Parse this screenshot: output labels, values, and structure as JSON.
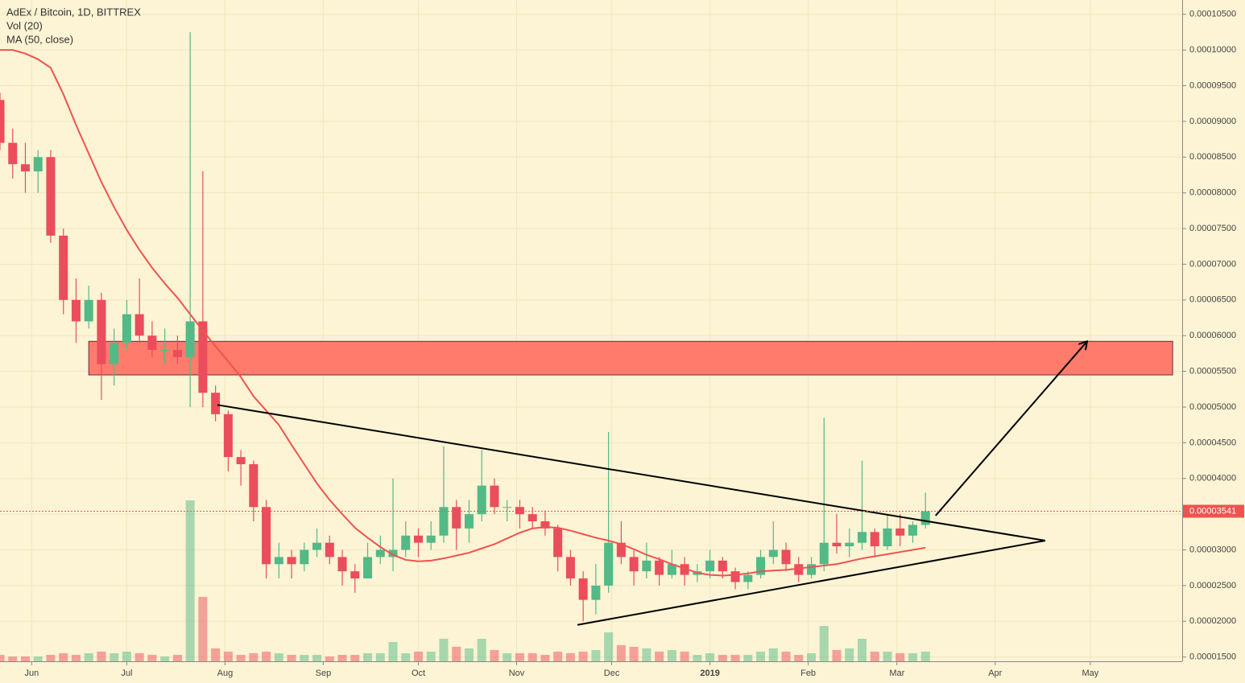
{
  "chart_data": {
    "type": "candlestick",
    "title": "AdEx / Bitcoin, 1D, BITTREX",
    "ylim": [
      1.44e-05,
      0.000107
    ],
    "yticks": [
      {
        "value": 1.5e-05,
        "label": "0.00001500"
      },
      {
        "value": 2e-05,
        "label": "0.00002000"
      },
      {
        "value": 2.5e-05,
        "label": "0.00002500"
      },
      {
        "value": 3e-05,
        "label": "0.00003000"
      },
      {
        "value": 3.5e-05,
        "label": "0.00003500"
      },
      {
        "value": 4e-05,
        "label": "0.00004000"
      },
      {
        "value": 4.5e-05,
        "label": "0.00004500"
      },
      {
        "value": 5e-05,
        "label": "0.00005000"
      },
      {
        "value": 5.5e-05,
        "label": "0.00005500"
      },
      {
        "value": 6e-05,
        "label": "0.00006000"
      },
      {
        "value": 6.5e-05,
        "label": "0.00006500"
      },
      {
        "value": 7e-05,
        "label": "0.00007000"
      },
      {
        "value": 7.5e-05,
        "label": "0.00007500"
      },
      {
        "value": 8e-05,
        "label": "0.00008000"
      },
      {
        "value": 8.5e-05,
        "label": "0.00008500"
      },
      {
        "value": 9e-05,
        "label": "0.00009000"
      },
      {
        "value": 9.5e-05,
        "label": "0.00009500"
      },
      {
        "value": 0.0001,
        "label": "0.00010000"
      },
      {
        "value": 0.000105,
        "label": "0.00010500"
      }
    ],
    "xlim": [
      0,
      373
    ],
    "xticks": [
      {
        "value": 10,
        "label": "Jun"
      },
      {
        "value": 40,
        "label": "Jul"
      },
      {
        "value": 71,
        "label": "Aug"
      },
      {
        "value": 102,
        "label": "Sep"
      },
      {
        "value": 132,
        "label": "Oct"
      },
      {
        "value": 163,
        "label": "Nov"
      },
      {
        "value": 193,
        "label": "Dec"
      },
      {
        "value": 224,
        "label": "2019"
      },
      {
        "value": 255,
        "label": "Feb"
      },
      {
        "value": 283,
        "label": "Mar"
      },
      {
        "value": 314,
        "label": "Apr"
      },
      {
        "value": 344,
        "label": "May"
      }
    ],
    "grid": true,
    "candles": {
      "up_color": "#53b987",
      "down_color": "#eb4d5c",
      "x": [
        0,
        4,
        8,
        12,
        16,
        20,
        24,
        28,
        32,
        36,
        40,
        44,
        48,
        52,
        56,
        60,
        64,
        68,
        72,
        76,
        80,
        84,
        88,
        92,
        96,
        100,
        104,
        108,
        112,
        116,
        120,
        124,
        128,
        132,
        136,
        140,
        144,
        148,
        152,
        156,
        160,
        164,
        168,
        172,
        176,
        180,
        184,
        188,
        192,
        196,
        200,
        204,
        208,
        212,
        216,
        220,
        224,
        228,
        232,
        236,
        240,
        244,
        248,
        252,
        256,
        260,
        264,
        268,
        272,
        276,
        280,
        284,
        288,
        292
      ],
      "open": [
        9.3e-05,
        8.7e-05,
        8.4e-05,
        8.3e-05,
        8.5e-05,
        7.4e-05,
        6.5e-05,
        6.2e-05,
        6.5e-05,
        5.6e-05,
        5.9e-05,
        6.3e-05,
        6e-05,
        5.8e-05,
        5.8e-05,
        5.7e-05,
        6.2e-05,
        5.2e-05,
        4.9e-05,
        4.3e-05,
        4.2e-05,
        3.6e-05,
        2.8e-05,
        2.9e-05,
        2.8e-05,
        3e-05,
        3.1e-05,
        2.9e-05,
        2.7e-05,
        2.6e-05,
        2.9e-05,
        2.9e-05,
        3e-05,
        3.2e-05,
        3.1e-05,
        3.2e-05,
        3.6e-05,
        3.3e-05,
        3.5e-05,
        3.9e-05,
        3.6e-05,
        3.6e-05,
        3.5e-05,
        3.4e-05,
        3.3e-05,
        2.9e-05,
        2.6e-05,
        2.3e-05,
        2.5e-05,
        3.1e-05,
        2.9e-05,
        2.7e-05,
        2.85e-05,
        2.65e-05,
        2.8e-05,
        2.65e-05,
        2.7e-05,
        2.85e-05,
        2.7e-05,
        2.55e-05,
        2.65e-05,
        2.9e-05,
        3e-05,
        2.8e-05,
        2.65e-05,
        2.8e-05,
        3.1e-05,
        3.05e-05,
        3.1e-05,
        3.25e-05,
        3.05e-05,
        3.3e-05,
        3.2e-05,
        3.35e-05
      ],
      "high": [
        9.4e-05,
        8.9e-05,
        8.7e-05,
        8.6e-05,
        8.6e-05,
        7.5e-05,
        6.8e-05,
        6.7e-05,
        6.6e-05,
        6.1e-05,
        6.5e-05,
        6.8e-05,
        6.2e-05,
        6.1e-05,
        6e-05,
        0.0001025,
        8.3e-05,
        5.3e-05,
        4.95e-05,
        4.4e-05,
        4.25e-05,
        3.7e-05,
        3.1e-05,
        3e-05,
        3.1e-05,
        3.3e-05,
        3.2e-05,
        3e-05,
        2.8e-05,
        3.1e-05,
        3.2e-05,
        4e-05,
        3.4e-05,
        3.3e-05,
        3.4e-05,
        4.45e-05,
        3.7e-05,
        3.7e-05,
        4.4e-05,
        4e-05,
        3.7e-05,
        3.7e-05,
        3.6e-05,
        3.55e-05,
        3.35e-05,
        3e-05,
        2.7e-05,
        2.8e-05,
        4.65e-05,
        3.4e-05,
        3e-05,
        3.1e-05,
        2.9e-05,
        3e-05,
        2.9e-05,
        2.8e-05,
        3e-05,
        2.9e-05,
        2.75e-05,
        2.7e-05,
        3e-05,
        3.4e-05,
        3.1e-05,
        2.9e-05,
        2.9e-05,
        4.85e-05,
        3.5e-05,
        3.3e-05,
        4.25e-05,
        3.3e-05,
        3.5e-05,
        3.5e-05,
        3.4e-05,
        3.8e-05
      ],
      "low": [
        8.6e-05,
        8.2e-05,
        8e-05,
        8e-05,
        7.3e-05,
        6.3e-05,
        5.9e-05,
        6.1e-05,
        5.1e-05,
        5.3e-05,
        5.8e-05,
        5.9e-05,
        5.7e-05,
        5.6e-05,
        5.6e-05,
        5e-05,
        5e-05,
        4.8e-05,
        4.1e-05,
        3.9e-05,
        3.4e-05,
        2.6e-05,
        2.6e-05,
        2.6e-05,
        2.7e-05,
        2.9e-05,
        2.8e-05,
        2.5e-05,
        2.4e-05,
        2.6e-05,
        2.8e-05,
        2.7e-05,
        2.9e-05,
        2.9e-05,
        3e-05,
        3.1e-05,
        3e-05,
        3.1e-05,
        3.4e-05,
        3.5e-05,
        3.4e-05,
        3.3e-05,
        3.3e-05,
        3.2e-05,
        2.7e-05,
        2.5e-05,
        2e-05,
        2.1e-05,
        2.4e-05,
        2.8e-05,
        2.5e-05,
        2.6e-05,
        2.5e-05,
        2.6e-05,
        2.5e-05,
        2.55e-05,
        2.6e-05,
        2.6e-05,
        2.45e-05,
        2.45e-05,
        2.6e-05,
        2.8e-05,
        2.7e-05,
        2.55e-05,
        2.6e-05,
        2.7e-05,
        2.95e-05,
        2.9e-05,
        3e-05,
        2.9e-05,
        3e-05,
        3.05e-05,
        3.1e-05,
        3.3e-05
      ],
      "close": [
        8.7e-05,
        8.4e-05,
        8.3e-05,
        8.5e-05,
        7.4e-05,
        6.5e-05,
        6.2e-05,
        6.5e-05,
        5.6e-05,
        5.9e-05,
        6.3e-05,
        6e-05,
        5.8e-05,
        5.8e-05,
        5.7e-05,
        6.2e-05,
        5.2e-05,
        4.9e-05,
        4.3e-05,
        4.2e-05,
        3.6e-05,
        2.8e-05,
        2.9e-05,
        2.8e-05,
        3e-05,
        3.1e-05,
        2.9e-05,
        2.7e-05,
        2.6e-05,
        2.9e-05,
        3e-05,
        3e-05,
        3.2e-05,
        3.1e-05,
        3.2e-05,
        3.6e-05,
        3.3e-05,
        3.5e-05,
        3.9e-05,
        3.6e-05,
        3.6e-05,
        3.5e-05,
        3.4e-05,
        3.3e-05,
        2.9e-05,
        2.6e-05,
        2.3e-05,
        2.5e-05,
        3.1e-05,
        2.9e-05,
        2.7e-05,
        2.85e-05,
        2.65e-05,
        2.8e-05,
        2.65e-05,
        2.7e-05,
        2.85e-05,
        2.7e-05,
        2.55e-05,
        2.65e-05,
        2.9e-05,
        3e-05,
        2.8e-05,
        2.65e-05,
        2.8e-05,
        3.1e-05,
        3.05e-05,
        3.1e-05,
        3.25e-05,
        3.05e-05,
        3.3e-05,
        3.2e-05,
        3.35e-05,
        3.541e-05
      ]
    },
    "volume": {
      "name": "Vol (20)",
      "values": [
        4,
        3,
        3,
        3,
        4,
        5,
        4,
        5,
        6,
        5,
        6,
        5,
        4,
        3,
        4,
        100,
        40,
        8,
        6,
        4,
        5,
        6,
        5,
        4,
        4,
        4,
        3,
        4,
        4,
        5,
        5,
        12,
        5,
        6,
        6,
        14,
        9,
        8,
        14,
        7,
        5,
        5,
        5,
        4,
        6,
        5,
        6,
        7,
        18,
        10,
        9,
        8,
        6,
        7,
        6,
        4,
        5,
        4,
        4,
        4,
        6,
        8,
        6,
        4,
        5,
        22,
        7,
        8,
        14,
        6,
        6,
        5,
        5,
        6
      ]
    },
    "ma": {
      "name": "MA (50, close)",
      "color": "#ef5350",
      "values": [
        0.0001,
        0.0001,
        9.95e-05,
        9.87e-05,
        9.75e-05,
        9.38e-05,
        8.95e-05,
        8.55e-05,
        8.15e-05,
        7.8e-05,
        7.48e-05,
        7.2e-05,
        6.95e-05,
        6.73e-05,
        6.53e-05,
        6.3e-05,
        6.07e-05,
        5.85e-05,
        5.64e-05,
        5.42e-05,
        5.15e-05,
        4.95e-05,
        4.75e-05,
        4.47e-05,
        4.2e-05,
        3.93e-05,
        3.7e-05,
        3.5e-05,
        3.31e-05,
        3.17e-05,
        3.04e-05,
        2.93e-05,
        2.86e-05,
        2.84e-05,
        2.85e-05,
        2.88e-05,
        2.92e-05,
        2.96e-05,
        3.02e-05,
        3.08e-05,
        3.16e-05,
        3.24e-05,
        3.3e-05,
        3.32e-05,
        3.31e-05,
        3.27e-05,
        3.22e-05,
        3.17e-05,
        3.13e-05,
        3.08e-05,
        3.01e-05,
        2.93e-05,
        2.87e-05,
        2.8e-05,
        2.74e-05,
        2.68e-05,
        2.65e-05,
        2.64e-05,
        2.65e-05,
        2.67e-05,
        2.7e-05,
        2.71e-05,
        2.72e-05,
        2.74e-05,
        2.76e-05,
        2.78e-05,
        2.8e-05,
        2.84e-05,
        2.88e-05,
        2.91e-05,
        2.94e-05,
        2.97e-05,
        3e-05,
        3.03e-05
      ]
    },
    "last_price": {
      "value": 3.541e-05,
      "label": "0.00003541",
      "color": "#ef5350"
    },
    "zone": {
      "xlim": [
        28,
        370
      ],
      "ylim": [
        5.45e-05,
        5.92e-05
      ],
      "color": "#ff7b6b"
    },
    "trend_lines": [
      {
        "x": [
          68.6,
          329.8
        ],
        "y": [
          5.03e-05,
          3.13e-05
        ]
      },
      {
        "x": [
          182.2,
          329.8
        ],
        "y": [
          1.95e-05,
          3.13e-05
        ]
      }
    ],
    "arrow": {
      "x": [
        295.2,
        343
      ],
      "y": [
        3.48e-05,
        5.92e-05
      ]
    }
  }
}
